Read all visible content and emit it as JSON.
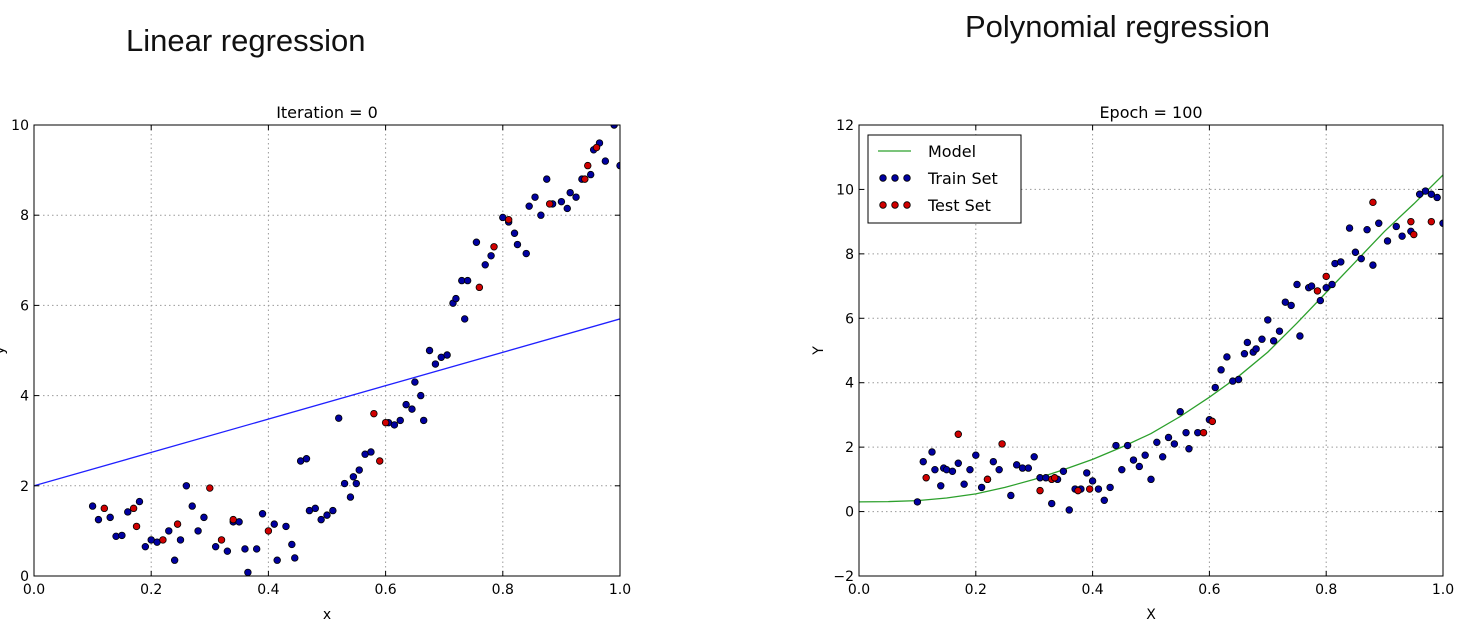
{
  "headlines": {
    "left": "Linear regression",
    "right": "Polynomial regression"
  },
  "chart_data": [
    {
      "type": "scatter",
      "title": "Iteration = 0",
      "xlabel": "x",
      "ylabel": "y",
      "xlim": [
        0.0,
        1.0
      ],
      "ylim": [
        0,
        10
      ],
      "xticks": [
        "0.0",
        "0.2",
        "0.4",
        "0.6",
        "0.8",
        "1.0"
      ],
      "yticks": [
        "0",
        "2",
        "4",
        "6",
        "8",
        "10"
      ],
      "grid": true,
      "legend": null,
      "model_line": {
        "x": [
          0.0,
          1.0
        ],
        "y": [
          2.0,
          5.7
        ],
        "color": "#1f1fff"
      },
      "series": [
        {
          "name": "Train Set",
          "color": "#0000a0",
          "points": [
            [
              0.1,
              1.55
            ],
            [
              0.11,
              1.25
            ],
            [
              0.13,
              1.3
            ],
            [
              0.14,
              0.88
            ],
            [
              0.15,
              0.9
            ],
            [
              0.16,
              1.42
            ],
            [
              0.18,
              1.65
            ],
            [
              0.19,
              0.65
            ],
            [
              0.2,
              0.8
            ],
            [
              0.21,
              0.75
            ],
            [
              0.23,
              1.0
            ],
            [
              0.24,
              0.35
            ],
            [
              0.25,
              0.8
            ],
            [
              0.26,
              2.0
            ],
            [
              0.27,
              1.55
            ],
            [
              0.28,
              1.0
            ],
            [
              0.29,
              1.3
            ],
            [
              0.31,
              0.65
            ],
            [
              0.33,
              0.55
            ],
            [
              0.34,
              1.2
            ],
            [
              0.35,
              1.2
            ],
            [
              0.36,
              0.6
            ],
            [
              0.365,
              0.08
            ],
            [
              0.38,
              0.6
            ],
            [
              0.39,
              1.38
            ],
            [
              0.41,
              1.15
            ],
            [
              0.415,
              0.35
            ],
            [
              0.43,
              1.1
            ],
            [
              0.44,
              0.7
            ],
            [
              0.445,
              0.4
            ],
            [
              0.455,
              2.55
            ],
            [
              0.465,
              2.6
            ],
            [
              0.47,
              1.45
            ],
            [
              0.48,
              1.5
            ],
            [
              0.49,
              1.25
            ],
            [
              0.5,
              1.35
            ],
            [
              0.51,
              1.45
            ],
            [
              0.52,
              3.5
            ],
            [
              0.53,
              2.05
            ],
            [
              0.54,
              1.75
            ],
            [
              0.545,
              2.2
            ],
            [
              0.55,
              2.05
            ],
            [
              0.555,
              2.35
            ],
            [
              0.565,
              2.7
            ],
            [
              0.575,
              2.75
            ],
            [
              0.605,
              3.4
            ],
            [
              0.615,
              3.35
            ],
            [
              0.625,
              3.45
            ],
            [
              0.635,
              3.8
            ],
            [
              0.645,
              3.7
            ],
            [
              0.65,
              4.3
            ],
            [
              0.66,
              4.0
            ],
            [
              0.665,
              3.45
            ],
            [
              0.675,
              5.0
            ],
            [
              0.685,
              4.7
            ],
            [
              0.695,
              4.85
            ],
            [
              0.705,
              4.9
            ],
            [
              0.715,
              6.05
            ],
            [
              0.72,
              6.15
            ],
            [
              0.73,
              6.55
            ],
            [
              0.735,
              5.7
            ],
            [
              0.74,
              6.55
            ],
            [
              0.755,
              7.4
            ],
            [
              0.77,
              6.9
            ],
            [
              0.78,
              7.1
            ],
            [
              0.8,
              7.95
            ],
            [
              0.81,
              7.85
            ],
            [
              0.82,
              7.6
            ],
            [
              0.825,
              7.35
            ],
            [
              0.84,
              7.15
            ],
            [
              0.845,
              8.2
            ],
            [
              0.855,
              8.4
            ],
            [
              0.865,
              8.0
            ],
            [
              0.875,
              8.8
            ],
            [
              0.885,
              8.25
            ],
            [
              0.9,
              8.3
            ],
            [
              0.91,
              8.15
            ],
            [
              0.915,
              8.5
            ],
            [
              0.925,
              8.4
            ],
            [
              0.935,
              8.8
            ],
            [
              0.95,
              8.9
            ],
            [
              0.955,
              9.45
            ],
            [
              0.965,
              9.6
            ],
            [
              0.975,
              9.2
            ],
            [
              0.99,
              10.0
            ],
            [
              1.0,
              9.1
            ]
          ]
        },
        {
          "name": "Test Set",
          "color": "#d00000",
          "points": [
            [
              0.12,
              1.5
            ],
            [
              0.17,
              1.5
            ],
            [
              0.175,
              1.1
            ],
            [
              0.22,
              0.8
            ],
            [
              0.245,
              1.15
            ],
            [
              0.3,
              1.95
            ],
            [
              0.32,
              0.8
            ],
            [
              0.34,
              1.25
            ],
            [
              0.4,
              1.0
            ],
            [
              0.58,
              3.6
            ],
            [
              0.59,
              2.55
            ],
            [
              0.6,
              3.4
            ],
            [
              0.76,
              6.4
            ],
            [
              0.785,
              7.3
            ],
            [
              0.81,
              7.9
            ],
            [
              0.88,
              8.25
            ],
            [
              0.94,
              8.8
            ],
            [
              0.945,
              9.1
            ],
            [
              0.96,
              9.5
            ]
          ]
        }
      ]
    },
    {
      "type": "scatter",
      "title": "Epoch = 100",
      "xlabel": "X",
      "ylabel": "Y",
      "xlim": [
        0.0,
        1.0
      ],
      "ylim": [
        -2,
        12
      ],
      "xticks": [
        "0.0",
        "0.2",
        "0.4",
        "0.6",
        "0.8",
        "1.0"
      ],
      "yticks": [
        "−2",
        "0",
        "2",
        "4",
        "6",
        "8",
        "10",
        "12"
      ],
      "grid": true,
      "legend": {
        "position": "top-left",
        "entries": [
          {
            "label": "Model",
            "kind": "line",
            "color": "#2ca02c"
          },
          {
            "label": "Train Set",
            "kind": "points",
            "color": "#0000a0"
          },
          {
            "label": "Test Set",
            "kind": "points",
            "color": "#d00000"
          }
        ]
      },
      "model_curve": {
        "name": "Model",
        "color": "#2ca02c",
        "x": [
          0.0,
          0.05,
          0.1,
          0.15,
          0.2,
          0.25,
          0.3,
          0.35,
          0.4,
          0.45,
          0.5,
          0.55,
          0.6,
          0.65,
          0.7,
          0.75,
          0.8,
          0.85,
          0.9,
          0.95,
          1.0
        ],
        "y": [
          0.3,
          0.31,
          0.34,
          0.42,
          0.55,
          0.75,
          1.0,
          1.3,
          1.62,
          2.0,
          2.42,
          2.95,
          3.55,
          4.2,
          4.95,
          5.85,
          6.8,
          7.75,
          8.7,
          9.55,
          10.45
        ]
      },
      "series": [
        {
          "name": "Train Set",
          "color": "#0000a0",
          "points": [
            [
              0.1,
              0.3
            ],
            [
              0.11,
              1.55
            ],
            [
              0.125,
              1.85
            ],
            [
              0.13,
              1.3
            ],
            [
              0.14,
              0.8
            ],
            [
              0.145,
              1.35
            ],
            [
              0.15,
              1.3
            ],
            [
              0.16,
              1.25
            ],
            [
              0.17,
              1.5
            ],
            [
              0.18,
              0.85
            ],
            [
              0.19,
              1.3
            ],
            [
              0.2,
              1.75
            ],
            [
              0.21,
              0.75
            ],
            [
              0.22,
              1.0
            ],
            [
              0.23,
              1.55
            ],
            [
              0.24,
              1.3
            ],
            [
              0.26,
              0.5
            ],
            [
              0.27,
              1.45
            ],
            [
              0.28,
              1.35
            ],
            [
              0.29,
              1.35
            ],
            [
              0.3,
              1.7
            ],
            [
              0.31,
              1.05
            ],
            [
              0.32,
              1.05
            ],
            [
              0.33,
              0.25
            ],
            [
              0.34,
              1.0
            ],
            [
              0.35,
              1.25
            ],
            [
              0.36,
              0.05
            ],
            [
              0.37,
              0.7
            ],
            [
              0.38,
              0.7
            ],
            [
              0.39,
              1.2
            ],
            [
              0.4,
              0.95
            ],
            [
              0.41,
              0.7
            ],
            [
              0.42,
              0.35
            ],
            [
              0.43,
              0.75
            ],
            [
              0.44,
              2.05
            ],
            [
              0.45,
              1.3
            ],
            [
              0.46,
              2.05
            ],
            [
              0.47,
              1.6
            ],
            [
              0.48,
              1.4
            ],
            [
              0.49,
              1.75
            ],
            [
              0.5,
              1.0
            ],
            [
              0.51,
              2.15
            ],
            [
              0.52,
              1.7
            ],
            [
              0.53,
              2.3
            ],
            [
              0.54,
              2.1
            ],
            [
              0.55,
              3.1
            ],
            [
              0.56,
              2.45
            ],
            [
              0.565,
              1.95
            ],
            [
              0.58,
              2.45
            ],
            [
              0.6,
              2.85
            ],
            [
              0.61,
              3.85
            ],
            [
              0.62,
              4.4
            ],
            [
              0.63,
              4.8
            ],
            [
              0.64,
              4.05
            ],
            [
              0.65,
              4.1
            ],
            [
              0.66,
              4.9
            ],
            [
              0.665,
              5.25
            ],
            [
              0.675,
              4.95
            ],
            [
              0.68,
              5.05
            ],
            [
              0.69,
              5.35
            ],
            [
              0.7,
              5.95
            ],
            [
              0.71,
              5.3
            ],
            [
              0.72,
              5.6
            ],
            [
              0.73,
              6.5
            ],
            [
              0.74,
              6.4
            ],
            [
              0.75,
              7.05
            ],
            [
              0.755,
              5.45
            ],
            [
              0.77,
              6.95
            ],
            [
              0.775,
              7.0
            ],
            [
              0.79,
              6.55
            ],
            [
              0.8,
              6.95
            ],
            [
              0.81,
              7.05
            ],
            [
              0.815,
              7.7
            ],
            [
              0.825,
              7.75
            ],
            [
              0.84,
              8.8
            ],
            [
              0.85,
              8.05
            ],
            [
              0.86,
              7.85
            ],
            [
              0.87,
              8.75
            ],
            [
              0.88,
              7.65
            ],
            [
              0.89,
              8.95
            ],
            [
              0.905,
              8.4
            ],
            [
              0.92,
              8.85
            ],
            [
              0.93,
              8.55
            ],
            [
              0.945,
              8.7
            ],
            [
              0.96,
              9.85
            ],
            [
              0.97,
              9.95
            ],
            [
              0.98,
              9.85
            ],
            [
              0.99,
              9.75
            ],
            [
              1.0,
              8.95
            ]
          ]
        },
        {
          "name": "Test Set",
          "color": "#d00000",
          "points": [
            [
              0.115,
              1.05
            ],
            [
              0.17,
              2.4
            ],
            [
              0.22,
              1.0
            ],
            [
              0.245,
              2.1
            ],
            [
              0.31,
              0.65
            ],
            [
              0.33,
              1.0
            ],
            [
              0.335,
              1.05
            ],
            [
              0.375,
              0.65
            ],
            [
              0.395,
              0.7
            ],
            [
              0.59,
              2.45
            ],
            [
              0.605,
              2.8
            ],
            [
              0.785,
              6.85
            ],
            [
              0.8,
              7.3
            ],
            [
              0.88,
              9.6
            ],
            [
              0.945,
              9.0
            ],
            [
              0.95,
              8.6
            ],
            [
              0.98,
              9.0
            ]
          ]
        }
      ]
    }
  ]
}
